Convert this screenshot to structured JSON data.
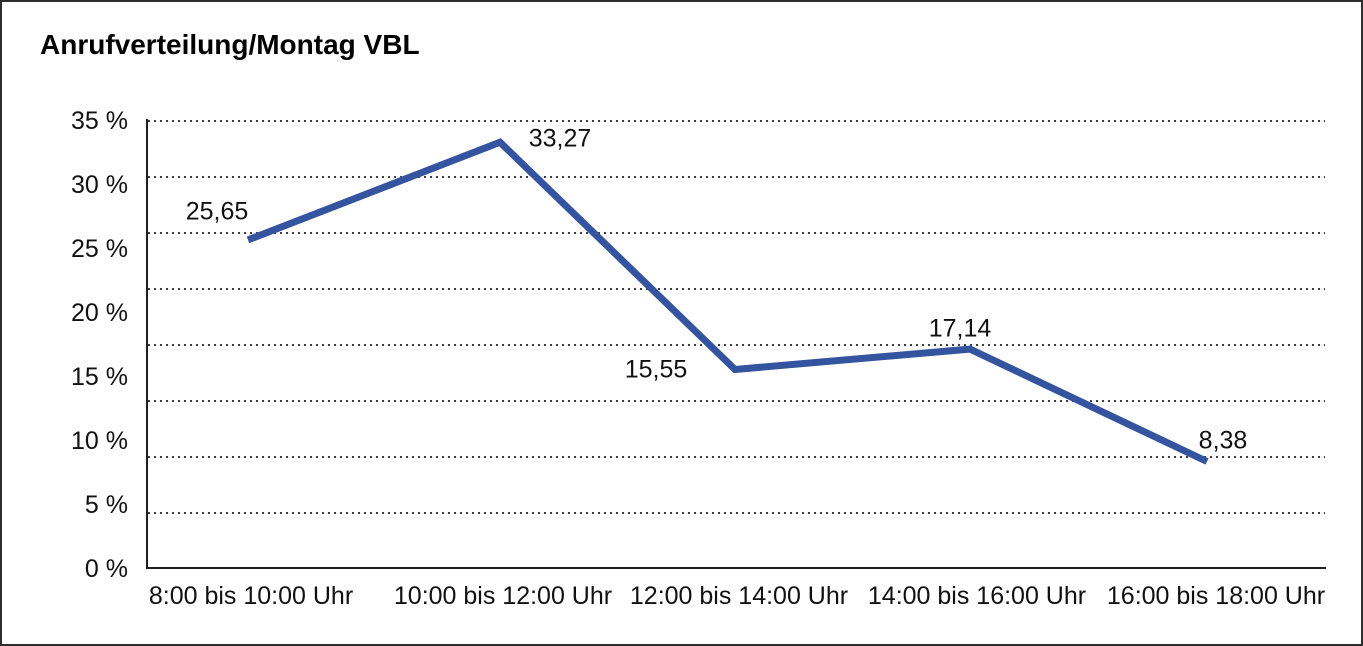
{
  "chart_data": {
    "type": "line",
    "title": "Anrufverteilung/Montag VBL",
    "categories": [
      "8:00 bis 10:00 Uhr",
      "10:00 bis 12:00 Uhr",
      "12:00 bis 14:00 Uhr",
      "14:00 bis 16:00 Uhr",
      "16:00 bis 18:00 Uhr"
    ],
    "values": [
      25.65,
      33.27,
      15.55,
      17.14,
      8.38
    ],
    "value_labels": [
      "25,65",
      "33,27",
      "15,55",
      "17,14",
      "8,38"
    ],
    "y_ticks": [
      "35 %",
      "30 %",
      "25 %",
      "20 %",
      "15 %",
      "10 %",
      "5 %",
      "0 %"
    ],
    "ylim": [
      0,
      35
    ],
    "y_tick_step": 5,
    "xlabel": "",
    "ylabel": "",
    "grid": "horizontal-dotted",
    "legend": "none",
    "line_color": "#3454A0",
    "axis_color": "#1f1f1f",
    "text_color": "#111111",
    "background": "#ffffff"
  }
}
